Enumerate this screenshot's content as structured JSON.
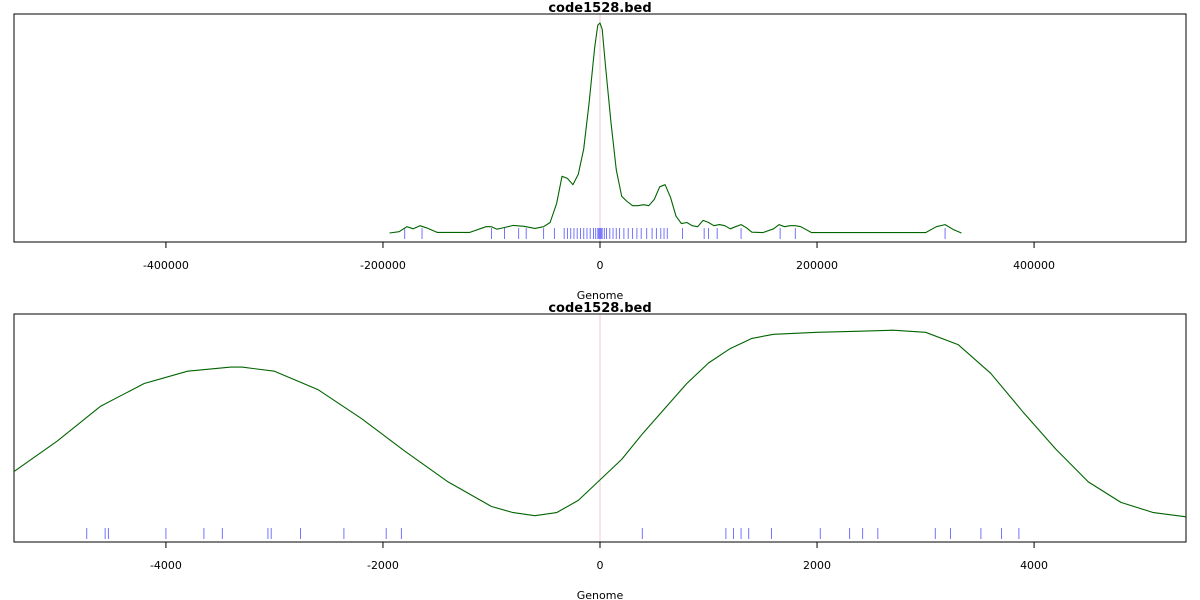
{
  "chart_data": [
    {
      "type": "line",
      "title": "code1528.bed",
      "xlabel": "Genome",
      "ylabel": "",
      "xlim": [
        -540000,
        540000
      ],
      "xticks": [
        -400000,
        -200000,
        0,
        200000,
        400000
      ],
      "xtick_labels": [
        "-400000",
        "-200000",
        "0",
        "200000",
        "400000"
      ],
      "center_line": 0,
      "curve_color": "#006400",
      "rug_color": "#0000ff",
      "density": {
        "x": [
          -194000,
          -185000,
          -178000,
          -172000,
          -166000,
          -160000,
          -150000,
          -120000,
          -105000,
          -100000,
          -95000,
          -90000,
          -80000,
          -70000,
          -60000,
          -52000,
          -46000,
          -40000,
          -35000,
          -30000,
          -25000,
          -20000,
          -15000,
          -10000,
          -5000,
          -2000,
          0,
          2000,
          5000,
          10000,
          15000,
          20000,
          25000,
          30000,
          35000,
          40000,
          45000,
          50000,
          55000,
          60000,
          65000,
          70000,
          75000,
          80000,
          85000,
          90000,
          95000,
          100000,
          105000,
          110000,
          115000,
          120000,
          125000,
          130000,
          135000,
          140000,
          150000,
          160000,
          165000,
          170000,
          175000,
          180000,
          185000,
          195000,
          300000,
          310000,
          318000,
          326000,
          333000
        ],
        "y": [
          0.0,
          0.006,
          0.03,
          0.02,
          0.035,
          0.025,
          0.003,
          0.003,
          0.03,
          0.03,
          0.018,
          0.024,
          0.036,
          0.032,
          0.022,
          0.03,
          0.05,
          0.14,
          0.27,
          0.26,
          0.23,
          0.28,
          0.4,
          0.62,
          0.88,
          0.99,
          1.0,
          0.97,
          0.8,
          0.53,
          0.3,
          0.175,
          0.15,
          0.13,
          0.13,
          0.135,
          0.13,
          0.16,
          0.22,
          0.23,
          0.17,
          0.08,
          0.045,
          0.05,
          0.035,
          0.03,
          0.06,
          0.05,
          0.035,
          0.04,
          0.035,
          0.02,
          0.03,
          0.04,
          0.025,
          0.004,
          0.002,
          0.02,
          0.04,
          0.03,
          0.035,
          0.035,
          0.03,
          0.002,
          0.002,
          0.03,
          0.04,
          0.015,
          0.0
        ]
      },
      "rug": [
        -180000,
        -164000,
        -100000,
        -88000,
        -75000,
        -68000,
        -52000,
        -42000,
        -33000,
        -30000,
        -27000,
        -24000,
        -21000,
        -18000,
        -15000,
        -12000,
        -9000,
        -6000,
        -4000,
        -2000,
        -1000,
        0,
        1000,
        2000,
        4000,
        6000,
        9000,
        12000,
        15000,
        18000,
        22000,
        26000,
        30000,
        34000,
        38000,
        43000,
        48000,
        52000,
        56000,
        59000,
        62000,
        76000,
        96000,
        100000,
        108000,
        130000,
        166000,
        180000,
        318000
      ]
    },
    {
      "type": "line",
      "title": "code1528.bed",
      "xlabel": "Genome",
      "ylabel": "",
      "xlim": [
        -5400,
        5400
      ],
      "xticks": [
        -4000,
        -2000,
        0,
        2000,
        4000
      ],
      "xtick_labels": [
        "-4000",
        "-2000",
        "0",
        "2000",
        "4000"
      ],
      "center_line": 0,
      "curve_color": "#006400",
      "rug_color": "#0000ff",
      "density": {
        "x": [
          -5400,
          -5000,
          -4600,
          -4200,
          -3800,
          -3400,
          -3300,
          -3000,
          -2600,
          -2200,
          -1800,
          -1400,
          -1000,
          -800,
          -600,
          -400,
          -200,
          0,
          200,
          400,
          600,
          800,
          1000,
          1200,
          1400,
          1600,
          2000,
          2400,
          2700,
          3000,
          3300,
          3600,
          3900,
          4200,
          4500,
          4800,
          5100,
          5400
        ],
        "y": [
          0.27,
          0.42,
          0.59,
          0.7,
          0.76,
          0.78,
          0.78,
          0.76,
          0.67,
          0.53,
          0.37,
          0.22,
          0.1,
          0.07,
          0.055,
          0.07,
          0.13,
          0.23,
          0.33,
          0.46,
          0.58,
          0.7,
          0.8,
          0.87,
          0.92,
          0.94,
          0.95,
          0.955,
          0.96,
          0.95,
          0.89,
          0.75,
          0.56,
          0.38,
          0.22,
          0.12,
          0.07,
          0.05
        ]
      },
      "rug": [
        -4730,
        -4560,
        -4530,
        -4000,
        -3650,
        -3480,
        -3060,
        -3030,
        -2760,
        -2360,
        -1970,
        -1830,
        390,
        1160,
        1230,
        1300,
        1370,
        1580,
        2030,
        2300,
        2420,
        2560,
        3090,
        3230,
        3510,
        3700,
        3860
      ]
    }
  ]
}
